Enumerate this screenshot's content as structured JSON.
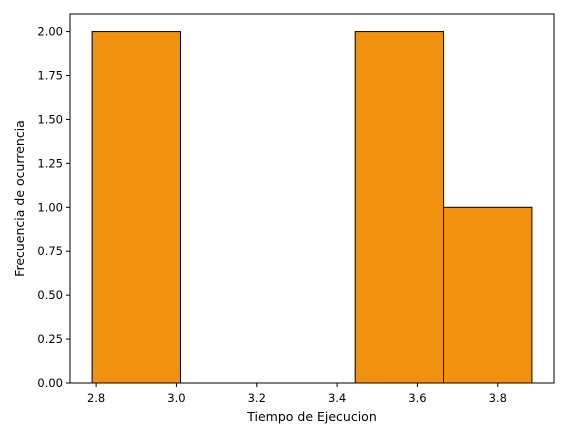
{
  "chart_data": {
    "type": "bar",
    "title": "",
    "xlabel": "Tiempo de Ejecucion",
    "ylabel": "Frecuencia de ocurrencia",
    "bins": [
      {
        "x0": 2.79,
        "x1": 3.01,
        "value": 2
      },
      {
        "x0": 3.01,
        "x1": 3.23,
        "value": 0
      },
      {
        "x0": 3.23,
        "x1": 3.445,
        "value": 0
      },
      {
        "x0": 3.445,
        "x1": 3.665,
        "value": 2
      },
      {
        "x0": 3.665,
        "x1": 3.885,
        "value": 1
      }
    ],
    "xlim": [
      2.735,
      3.94
    ],
    "ylim": [
      0,
      2.1
    ],
    "xticks": [
      2.8,
      3.0,
      3.2,
      3.4,
      3.6,
      3.8
    ],
    "xtick_labels": [
      "2.8",
      "3.0",
      "3.2",
      "3.4",
      "3.6",
      "3.8"
    ],
    "yticks": [
      0,
      0.25,
      0.5,
      0.75,
      1.0,
      1.25,
      1.5,
      1.75,
      2.0
    ],
    "ytick_labels": [
      "0.00",
      "0.25",
      "0.50",
      "0.75",
      "1.00",
      "1.25",
      "1.50",
      "1.75",
      "2.00"
    ],
    "grid": false,
    "bar_color": "#f0920f",
    "edge_color": "#000000"
  }
}
